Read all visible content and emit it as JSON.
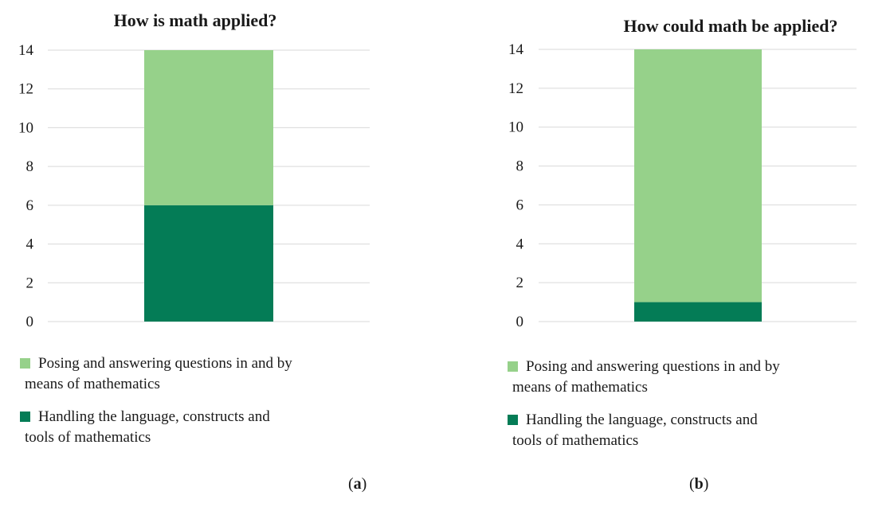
{
  "chart_data": [
    {
      "type": "bar",
      "stacked": true,
      "title": "How is math applied?",
      "panel_label": "a",
      "categories": [
        ""
      ],
      "series": [
        {
          "name": "Handling the language, constructs and tools of mathematics",
          "values": [
            6
          ],
          "color": "#047c56"
        },
        {
          "name": "Posing and answering questions in and by means of mathematics",
          "values": [
            8
          ],
          "color": "#96d18a"
        }
      ],
      "ylim": [
        0,
        14
      ],
      "yticks": [
        "0",
        "2",
        "4",
        "6",
        "8",
        "10",
        "12",
        "14"
      ],
      "grid": true,
      "legend": {
        "placement": "bottom",
        "entries": [
          {
            "lines": [
              "Posing and answering questions in and by",
              "means of mathematics"
            ],
            "color": "#96d18a"
          },
          {
            "lines": [
              "Handling the language, constructs and",
              "tools of mathematics"
            ],
            "color": "#047c56"
          }
        ]
      }
    },
    {
      "type": "bar",
      "stacked": true,
      "title": "How could math be applied?",
      "panel_label": "b",
      "categories": [
        ""
      ],
      "series": [
        {
          "name": "Handling the language, constructs and tools of mathematics",
          "values": [
            1
          ],
          "color": "#047c56"
        },
        {
          "name": "Posing and answering questions in and by means of mathematics",
          "values": [
            13
          ],
          "color": "#96d18a"
        }
      ],
      "ylim": [
        0,
        14
      ],
      "yticks": [
        "0",
        "2",
        "4",
        "6",
        "8",
        "10",
        "12",
        "14"
      ],
      "grid": true,
      "legend": {
        "placement": "bottom",
        "entries": [
          {
            "lines": [
              "Posing and answering questions in and by",
              "means of mathematics"
            ],
            "color": "#96d18a"
          },
          {
            "lines": [
              "Handling the language, constructs and",
              "tools of mathematics"
            ],
            "color": "#047c56"
          }
        ]
      }
    }
  ]
}
